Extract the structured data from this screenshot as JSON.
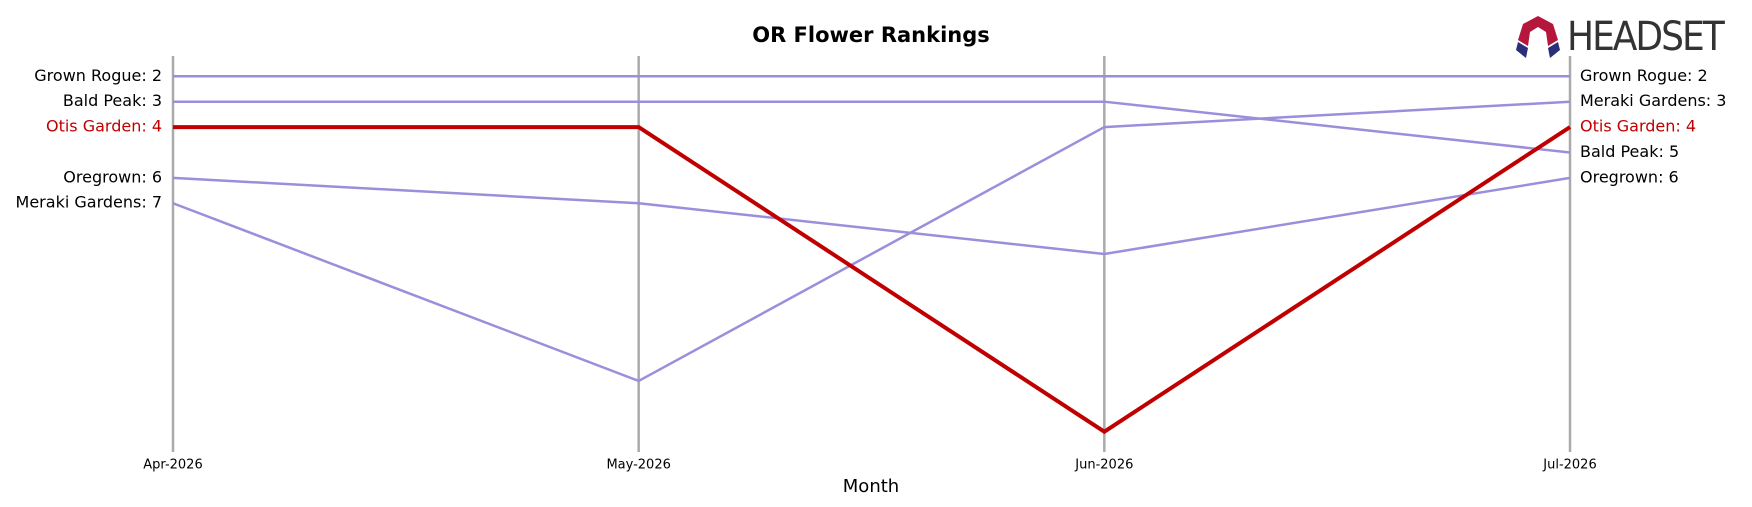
{
  "logo": "HEADSET",
  "chart_data": {
    "type": "bump",
    "title": "OR Flower Rankings",
    "xlabel": "Month",
    "categories": [
      "Apr-2026",
      "May-2026",
      "Jun-2026",
      "Jul-2026"
    ],
    "ylim": [
      16.8,
      1.2
    ],
    "highlight": "Otis Garden",
    "series": [
      {
        "name": "Grown Rogue",
        "color": "#9b8fdb",
        "values": [
          2,
          2,
          2,
          2
        ],
        "value_labels": [
          "Grown Rogue: 2",
          null,
          null,
          "Grown Rogue: 2"
        ]
      },
      {
        "name": "Bald Peak",
        "color": "#9b8fdb",
        "values": [
          3,
          3,
          3,
          5
        ],
        "value_labels": [
          "Bald Peak: 3",
          null,
          null,
          "Bald Peak: 5"
        ]
      },
      {
        "name": "Oregrown",
        "color": "#9b8fdb",
        "values": [
          6,
          7,
          9,
          6
        ],
        "value_labels": [
          "Oregrown: 6",
          null,
          null,
          "Oregrown: 6"
        ]
      },
      {
        "name": "Meraki Gardens",
        "color": "#9b8fdb",
        "values": [
          7,
          14,
          4,
          3
        ],
        "value_labels": [
          "Meraki Gardens: 7",
          null,
          null,
          "Meraki Gardens: 3"
        ]
      },
      {
        "name": "Otis Garden",
        "color": "#c00000",
        "values": [
          4,
          4,
          16,
          4
        ],
        "value_labels": [
          "Otis Garden: 4",
          null,
          null,
          "Otis Garden: 4"
        ]
      }
    ]
  }
}
